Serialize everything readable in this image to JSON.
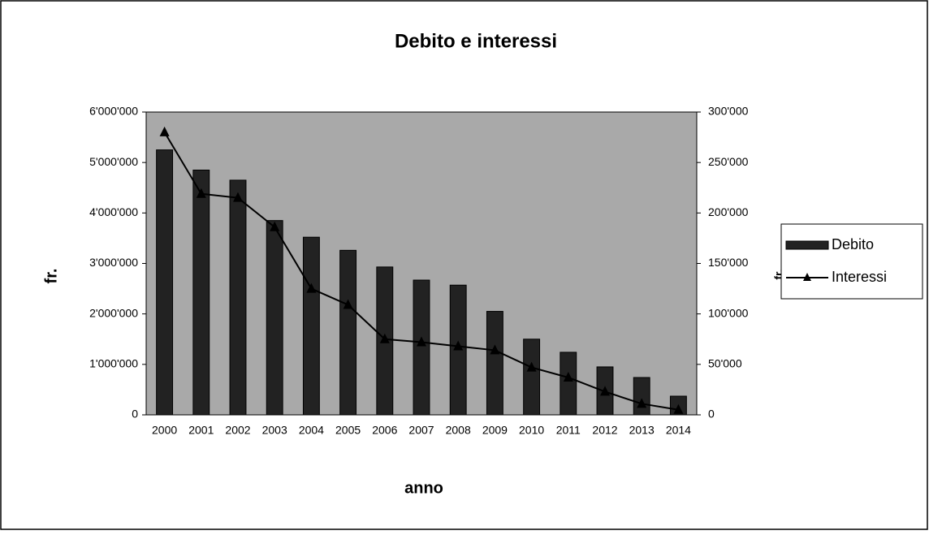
{
  "chart_data": {
    "type": "bar",
    "title": "Debito e interessi",
    "x_label": "anno",
    "y_label": "fr.",
    "y2_label": "fr.",
    "categories": [
      "2000",
      "2001",
      "2002",
      "2003",
      "2004",
      "2005",
      "2006",
      "2007",
      "2008",
      "2009",
      "2010",
      "2011",
      "2012",
      "2013",
      "2014"
    ],
    "series": [
      {
        "name": "Debito",
        "type": "bar",
        "color": "#222222",
        "values": [
          5250000,
          4850000,
          4650000,
          3850000,
          3520000,
          3260000,
          2930000,
          2670000,
          2570000,
          2050000,
          1500000,
          1240000,
          950000,
          740000,
          370000
        ]
      },
      {
        "name": "Interessi",
        "type": "line",
        "axis": "y2",
        "color": "#000000",
        "values": [
          280000,
          219000,
          215000,
          186000,
          125000,
          109000,
          75000,
          72000,
          68000,
          64000,
          47000,
          37000,
          23000,
          11000,
          5000
        ]
      }
    ],
    "ylim": [
      0,
      6000000
    ],
    "yticks": [
      0,
      {
        "value": 1000000,
        "label": "1'000'000"
      },
      {
        "value": 2000000,
        "label": "2'000'000"
      },
      {
        "value": 3000000,
        "label": "3'000'000"
      },
      {
        "value": 4000000,
        "label": "4'000'000"
      },
      {
        "value": 5000000,
        "label": "5'000'000"
      },
      {
        "value": 6000000,
        "label": "6'000'000"
      }
    ],
    "y2lim": [
      0,
      300000
    ],
    "y2ticks": [
      0,
      {
        "value": 50000,
        "label": "50'000"
      },
      {
        "value": 100000,
        "label": "100'000"
      },
      {
        "value": 150000,
        "label": "150'000"
      },
      {
        "value": 200000,
        "label": "200'000"
      },
      {
        "value": 250000,
        "label": "250'000"
      },
      {
        "value": 300000,
        "label": "300'000"
      }
    ],
    "legend": "right",
    "plot_background": "#a9a9a9"
  }
}
